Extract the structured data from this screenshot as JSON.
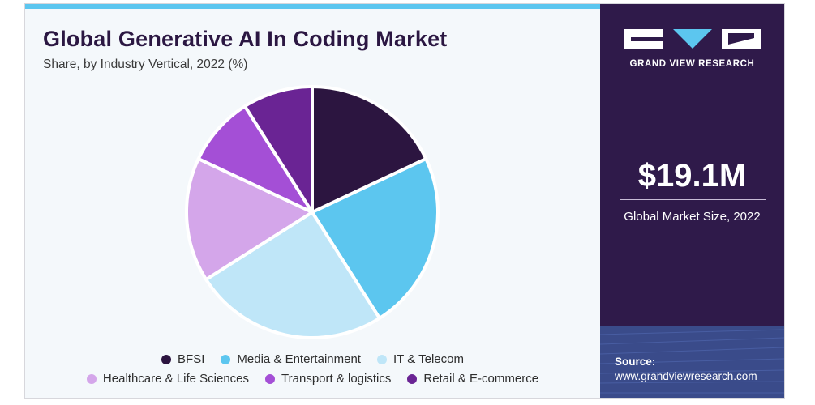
{
  "header": {
    "title": "Global Generative AI In Coding Market",
    "subtitle": "Share, by Industry Vertical, 2022 (%)"
  },
  "brand": {
    "name": "GRAND VIEW RESEARCH",
    "logo_icon": "gvr-logo-icon"
  },
  "metric": {
    "value": "$19.1M",
    "label": "Global Market Size, 2022"
  },
  "source": {
    "label": "Source:",
    "url": "www.grandviewresearch.com"
  },
  "colors": {
    "accent_bar": "#5cc6ef",
    "panel": "#2f1a4a",
    "title": "#2b1742"
  },
  "chart_data": {
    "type": "pie",
    "title": "Global Generative AI In Coding Market",
    "subtitle": "Share, by Industry Vertical, 2022 (%)",
    "legend_position": "bottom",
    "slices": [
      {
        "name": "BFSI",
        "value": 18,
        "color": "#2c1540"
      },
      {
        "name": "Media & Entertainment",
        "value": 23,
        "color": "#5cc6ef"
      },
      {
        "name": "IT & Telecom",
        "value": 25,
        "color": "#bfe6f8"
      },
      {
        "name": "Healthcare & Life Sciences",
        "value": 16,
        "color": "#d4a6ea"
      },
      {
        "name": "Transport & logistics",
        "value": 9,
        "color": "#a44fd6"
      },
      {
        "name": "Retail & E-commerce",
        "value": 9,
        "color": "#6a2494"
      }
    ]
  }
}
